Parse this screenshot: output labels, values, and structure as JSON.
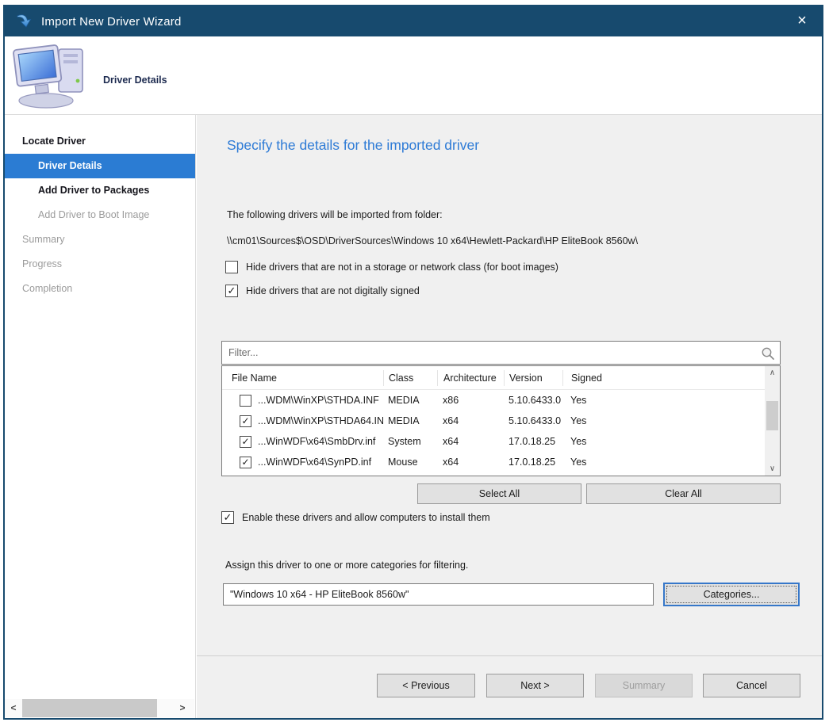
{
  "window": {
    "title": "Import New Driver Wizard"
  },
  "icons": {
    "close": "×",
    "check": "✓",
    "scroll_up": "∧",
    "scroll_down": "∨",
    "scroll_left": "<",
    "scroll_right": ">"
  },
  "colors": {
    "titlebar": "#174a6e",
    "accent_selected": "#2b7cd3",
    "heading_blue": "#2e7bd6",
    "content_bg": "#f0f0f0",
    "disabled_text": "#9b9b9b"
  },
  "header": {
    "title": "Driver Details"
  },
  "sidebar": {
    "items": [
      {
        "label": "Locate Driver",
        "state": "active-parent",
        "indent": 0
      },
      {
        "label": "Driver Details",
        "state": "selected",
        "indent": 1
      },
      {
        "label": "Add Driver to Packages",
        "state": "active",
        "indent": 1
      },
      {
        "label": "Add Driver to Boot Image",
        "state": "disabled",
        "indent": 1
      },
      {
        "label": "Summary",
        "state": "disabled",
        "indent": 0
      },
      {
        "label": "Progress",
        "state": "disabled",
        "indent": 0
      },
      {
        "label": "Completion",
        "state": "disabled",
        "indent": 0
      }
    ]
  },
  "main": {
    "heading": "Specify the details for the imported driver",
    "folder_intro": "The following drivers will be imported from folder:",
    "folder_path": "\\\\cm01\\Sources$\\OSD\\DriverSources\\Windows 10 x64\\Hewlett-Packard\\HP EliteBook 8560w\\",
    "checkbox_hide_storage": {
      "label": "Hide drivers that are not in a storage or network class (for boot images)",
      "checked": false
    },
    "checkbox_hide_unsigned": {
      "label": "Hide drivers that are not digitally signed",
      "checked": true
    },
    "filter_placeholder": "Filter...",
    "table": {
      "columns": [
        "File Name",
        "Class",
        "Architecture",
        "Version",
        "Signed"
      ],
      "rows": [
        {
          "checked": false,
          "file": "...WDM\\WinXP\\STHDA.INF",
          "class": "MEDIA",
          "arch": "x86",
          "version": "5.10.6433.0",
          "signed": "Yes"
        },
        {
          "checked": true,
          "file": "...WDM\\WinXP\\STHDA64.INF",
          "class": "MEDIA",
          "arch": "x64",
          "version": "5.10.6433.0",
          "signed": "Yes"
        },
        {
          "checked": true,
          "file": "...WinWDF\\x64\\SmbDrv.inf",
          "class": "System",
          "arch": "x64",
          "version": "17.0.18.25",
          "signed": "Yes"
        },
        {
          "checked": true,
          "file": "...WinWDF\\x64\\SynPD.inf",
          "class": "Mouse",
          "arch": "x64",
          "version": "17.0.18.25",
          "signed": "Yes"
        }
      ]
    },
    "select_all_label": "Select All",
    "clear_all_label": "Clear All",
    "checkbox_enable": {
      "label": "Enable these drivers and allow computers to install them",
      "checked": true
    },
    "categories_intro": "Assign this driver to one or more categories for filtering.",
    "category_value": "\"Windows 10 x64 - HP EliteBook 8560w\"",
    "categories_button_label": "Categories..."
  },
  "footer": {
    "previous_label": "< Previous",
    "next_label": "Next >",
    "summary_label": "Summary",
    "cancel_label": "Cancel"
  }
}
